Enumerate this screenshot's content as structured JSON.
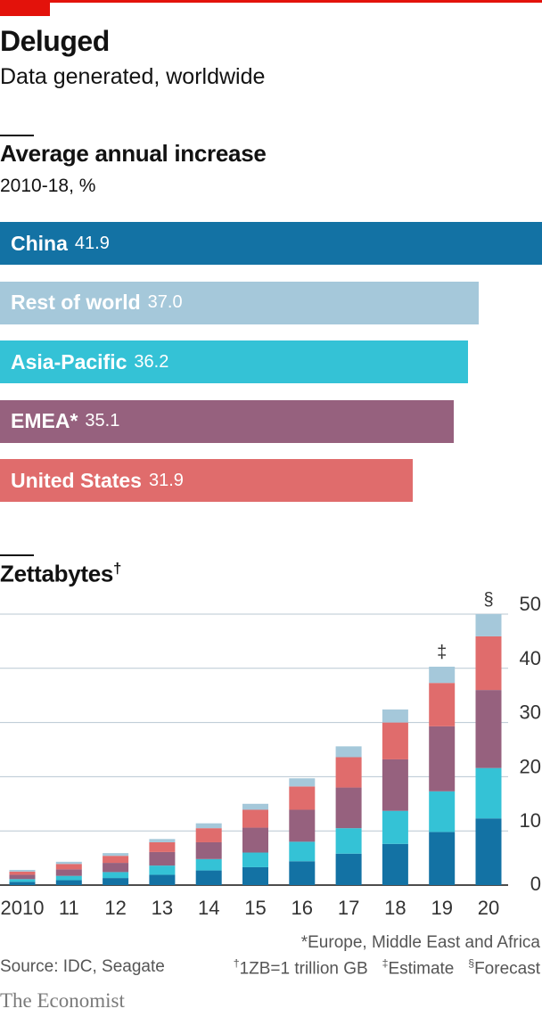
{
  "header": {
    "title": "Deluged",
    "subtitle": "Data generated, worldwide"
  },
  "colors": {
    "accent": "#e3120b",
    "china": "#1372a4",
    "rest_of_world": "#a5c8da",
    "asia_pacific": "#34c2d6",
    "emea": "#96617e",
    "united_states": "#e06c6c"
  },
  "chart_data": [
    {
      "type": "bar",
      "orientation": "horizontal",
      "title": "Average annual increase",
      "subtitle": "2010-18, %",
      "categories": [
        "China",
        "Rest of world",
        "Asia-Pacific",
        "EMEA*",
        "United States"
      ],
      "values": [
        41.9,
        37.0,
        36.2,
        35.1,
        31.9
      ],
      "value_labels": [
        "41.9",
        "37.0",
        "36.2",
        "35.1",
        "31.9"
      ],
      "colors": [
        "#1372a4",
        "#a5c8da",
        "#34c2d6",
        "#96617e",
        "#e06c6c"
      ],
      "xlim": [
        0,
        41.9
      ]
    },
    {
      "type": "bar",
      "stacked": true,
      "title": "Zettabytes",
      "title_mark": "†",
      "categories": [
        "2010",
        "11",
        "12",
        "13",
        "14",
        "15",
        "16",
        "17",
        "18",
        "19",
        "20"
      ],
      "category_marks": [
        "",
        "",
        "",
        "",
        "",
        "",
        "",
        "",
        "",
        "‡",
        "§"
      ],
      "series": [
        {
          "name": "China",
          "color": "#1372a4",
          "values": [
            0.6,
            0.9,
            1.3,
            1.9,
            2.7,
            3.3,
            4.4,
            5.8,
            7.6,
            9.8,
            12.3
          ]
        },
        {
          "name": "Asia-Pacific",
          "color": "#34c2d6",
          "values": [
            0.5,
            0.8,
            1.1,
            1.7,
            2.1,
            2.7,
            3.6,
            4.7,
            6.1,
            7.5,
            9.3
          ]
        },
        {
          "name": "EMEA*",
          "color": "#96617e",
          "values": [
            0.8,
            1.2,
            1.7,
            2.5,
            3.1,
            4.6,
            5.9,
            7.5,
            9.5,
            12.0,
            14.4
          ]
        },
        {
          "name": "United States",
          "color": "#e06c6c",
          "values": [
            0.6,
            1.0,
            1.3,
            1.8,
            2.6,
            3.3,
            4.3,
            5.6,
            6.8,
            8.0,
            9.9
          ]
        },
        {
          "name": "Rest of world",
          "color": "#a5c8da",
          "values": [
            0.3,
            0.4,
            0.5,
            0.6,
            0.9,
            1.1,
            1.5,
            2.0,
            2.4,
            3.0,
            4.1
          ]
        }
      ],
      "yticks": [
        0,
        10,
        20,
        30,
        40,
        50
      ],
      "ylim": [
        0,
        50
      ],
      "grid": true,
      "y_axis_side": "right"
    }
  ],
  "footnotes": {
    "emea": "*Europe, Middle East and Africa",
    "source": "Source: IDC, Seagate",
    "zb_mark": "†",
    "zb": "1ZB=1 trillion GB",
    "estimate_mark": "‡",
    "estimate": "Estimate",
    "forecast_mark": "§",
    "forecast": "Forecast"
  },
  "brand": "The Economist"
}
